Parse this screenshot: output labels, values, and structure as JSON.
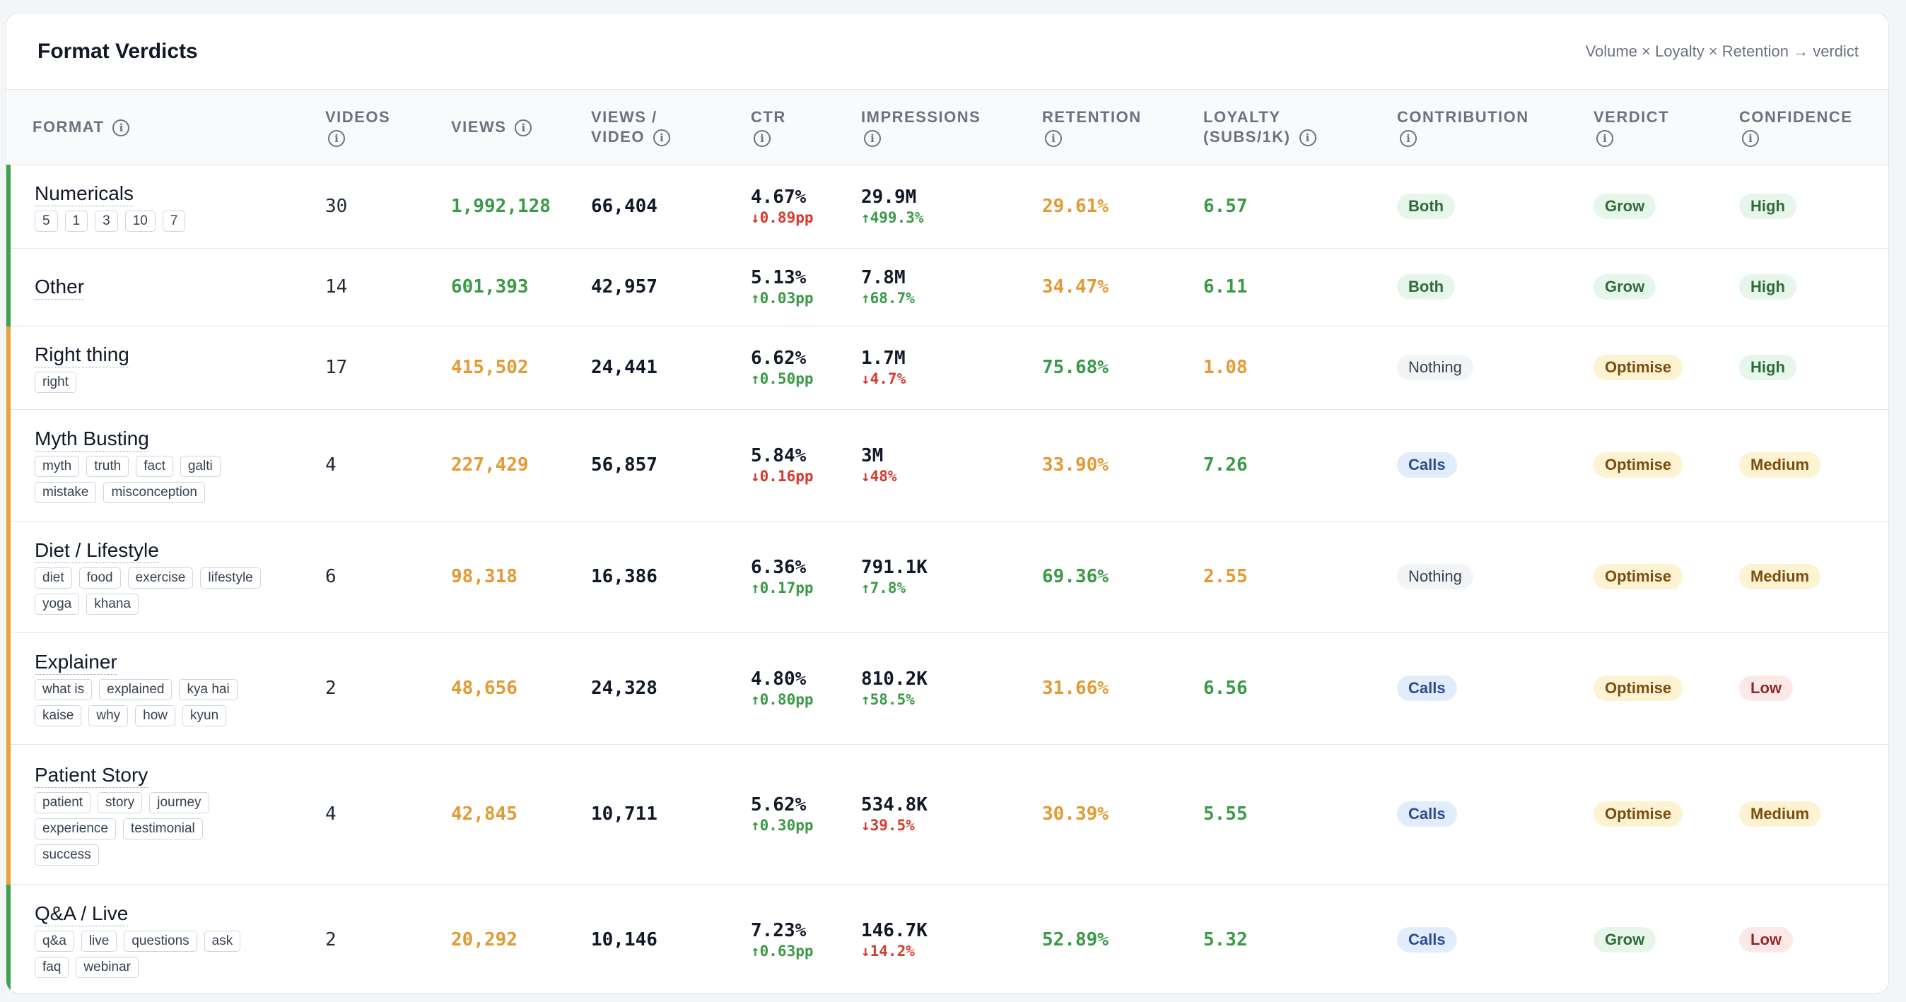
{
  "header": {
    "title": "Format Verdicts",
    "subtitle": "Volume × Loyalty × Retention → verdict"
  },
  "columns": {
    "format": "FORMAT",
    "videos": "VIDEOS",
    "views": "VIEWS",
    "views_per_video_1": "VIEWS /",
    "views_per_video_2": "VIDEO",
    "ctr": "CTR",
    "impressions": "IMPRESSIONS",
    "retention": "RETENTION",
    "loyalty_1": "LOYALTY",
    "loyalty_2": "(SUBS/1K)",
    "contribution": "CONTRIBUTION",
    "verdict": "VERDICT",
    "confidence": "CONFIDENCE"
  },
  "info_icon_glyph": "i",
  "rows": [
    {
      "name": "Numericals",
      "tags": [
        "5",
        "1",
        "3",
        "10",
        "7"
      ],
      "videos": "30",
      "views": "1,992,128",
      "views_per_video": "66,404",
      "ctr": "4.67%",
      "ctr_delta": "↓0.89pp",
      "impressions": "29.9M",
      "impressions_delta": "↑499.3%",
      "retention": "29.61%",
      "loyalty": "6.57",
      "contribution": "Both",
      "verdict": "Grow",
      "confidence": "High"
    },
    {
      "name": "Other",
      "tags": [],
      "videos": "14",
      "views": "601,393",
      "views_per_video": "42,957",
      "ctr": "5.13%",
      "ctr_delta": "↑0.03pp",
      "impressions": "7.8M",
      "impressions_delta": "↑68.7%",
      "retention": "34.47%",
      "loyalty": "6.11",
      "contribution": "Both",
      "verdict": "Grow",
      "confidence": "High"
    },
    {
      "name": "Right thing",
      "tags": [
        "right"
      ],
      "videos": "17",
      "views": "415,502",
      "views_per_video": "24,441",
      "ctr": "6.62%",
      "ctr_delta": "↑0.50pp",
      "impressions": "1.7M",
      "impressions_delta": "↓4.7%",
      "retention": "75.68%",
      "loyalty": "1.08",
      "contribution": "Nothing",
      "verdict": "Optimise",
      "confidence": "High"
    },
    {
      "name": "Myth Busting",
      "tags": [
        "myth",
        "truth",
        "fact",
        "galti",
        "mistake",
        "misconception"
      ],
      "videos": "4",
      "views": "227,429",
      "views_per_video": "56,857",
      "ctr": "5.84%",
      "ctr_delta": "↓0.16pp",
      "impressions": "3M",
      "impressions_delta": "↓48%",
      "retention": "33.90%",
      "loyalty": "7.26",
      "contribution": "Calls",
      "verdict": "Optimise",
      "confidence": "Medium"
    },
    {
      "name": "Diet / Lifestyle",
      "tags": [
        "diet",
        "food",
        "exercise",
        "lifestyle",
        "yoga",
        "khana"
      ],
      "videos": "6",
      "views": "98,318",
      "views_per_video": "16,386",
      "ctr": "6.36%",
      "ctr_delta": "↑0.17pp",
      "impressions": "791.1K",
      "impressions_delta": "↑7.8%",
      "retention": "69.36%",
      "loyalty": "2.55",
      "contribution": "Nothing",
      "verdict": "Optimise",
      "confidence": "Medium"
    },
    {
      "name": "Explainer",
      "tags": [
        "what is",
        "explained",
        "kya hai",
        "kaise",
        "why",
        "how",
        "kyun"
      ],
      "videos": "2",
      "views": "48,656",
      "views_per_video": "24,328",
      "ctr": "4.80%",
      "ctr_delta": "↑0.80pp",
      "impressions": "810.2K",
      "impressions_delta": "↑58.5%",
      "retention": "31.66%",
      "loyalty": "6.56",
      "contribution": "Calls",
      "verdict": "Optimise",
      "confidence": "Low"
    },
    {
      "name": "Patient Story",
      "tags": [
        "patient",
        "story",
        "journey",
        "experience",
        "testimonial",
        "success"
      ],
      "videos": "4",
      "views": "42,845",
      "views_per_video": "10,711",
      "ctr": "5.62%",
      "ctr_delta": "↑0.30pp",
      "impressions": "534.8K",
      "impressions_delta": "↓39.5%",
      "retention": "30.39%",
      "loyalty": "5.55",
      "contribution": "Calls",
      "verdict": "Optimise",
      "confidence": "Medium"
    },
    {
      "name": "Q&A / Live",
      "tags": [
        "q&a",
        "live",
        "questions",
        "ask",
        "faq",
        "webinar"
      ],
      "videos": "2",
      "views": "20,292",
      "views_per_video": "10,146",
      "ctr": "7.23%",
      "ctr_delta": "↑0.63pp",
      "impressions": "146.7K",
      "impressions_delta": "↓14.2%",
      "retention": "52.89%",
      "loyalty": "5.32",
      "contribution": "Calls",
      "verdict": "Grow",
      "confidence": "Low"
    }
  ],
  "row_styles": [
    {
      "accent": "#3fa34d",
      "views_color": "green",
      "retention_color": "orange",
      "loyalty_color": "green"
    },
    {
      "accent": "#3fa34d",
      "views_color": "green",
      "retention_color": "orange",
      "loyalty_color": "green"
    },
    {
      "accent": "#e8a33b",
      "views_color": "orange",
      "retention_color": "green",
      "loyalty_color": "orange"
    },
    {
      "accent": "#e8a33b",
      "views_color": "orange",
      "retention_color": "orange",
      "loyalty_color": "green"
    },
    {
      "accent": "#e8a33b",
      "views_color": "orange",
      "retention_color": "green",
      "loyalty_color": "orange"
    },
    {
      "accent": "#e8a33b",
      "views_color": "orange",
      "retention_color": "orange",
      "loyalty_color": "green"
    },
    {
      "accent": "#e8a33b",
      "views_color": "orange",
      "retention_color": "orange",
      "loyalty_color": "green"
    },
    {
      "accent": "#3fa34d",
      "views_color": "orange",
      "retention_color": "green",
      "loyalty_color": "green"
    }
  ],
  "colors": {
    "green": "#3a9a48",
    "orange": "#e39a33",
    "red": "#d63a2f"
  }
}
